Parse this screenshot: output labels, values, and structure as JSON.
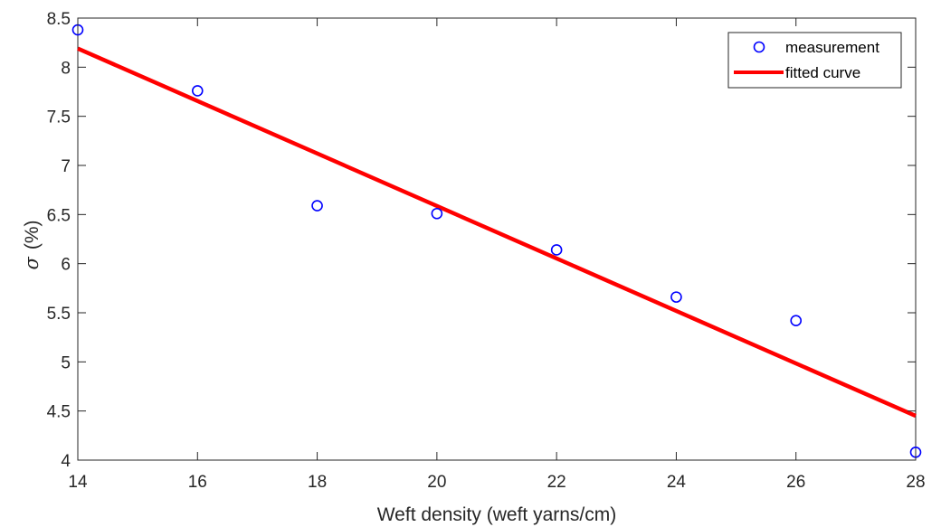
{
  "chart_data": {
    "type": "scatter",
    "xlabel": "Weft density (weft yarns/cm)",
    "ylabel_symbol": "σ",
    "ylabel_unit": "(%)",
    "xlim": [
      14,
      28
    ],
    "ylim": [
      4,
      8.5
    ],
    "xticks": [
      "14",
      "16",
      "18",
      "20",
      "22",
      "24",
      "26",
      "28"
    ],
    "yticks": [
      "4",
      "4.5",
      "5",
      "5.5",
      "6",
      "6.5",
      "7",
      "7.5",
      "8",
      "8.5"
    ],
    "grid": false,
    "legend_position": "top-right",
    "series": [
      {
        "name": "measurement",
        "kind": "marker",
        "marker": "circle",
        "color": "#0000ff",
        "x": [
          14,
          16,
          18,
          20,
          22,
          24,
          26,
          28
        ],
        "y": [
          8.38,
          7.76,
          6.59,
          6.51,
          6.14,
          5.66,
          5.42,
          4.08
        ]
      },
      {
        "name": "fitted curve",
        "kind": "line",
        "color": "#ff0000",
        "x": [
          14,
          28
        ],
        "y": [
          8.19,
          4.45
        ]
      }
    ]
  }
}
